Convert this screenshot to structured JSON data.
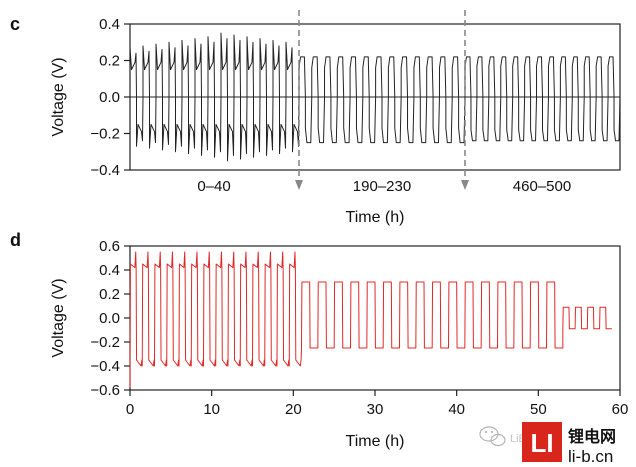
{
  "chart_data": [
    {
      "panel": "c",
      "type": "line",
      "ylabel": "Voltage (V)",
      "xlabel": "Time (h)",
      "ylim": [
        -0.4,
        0.4
      ],
      "yticks": [
        "0.4",
        "0.2",
        "0.0",
        "-0.2",
        "-0.4"
      ],
      "segments": [
        "0–40",
        "190–230",
        "460–500"
      ],
      "color": "#222222",
      "series": [
        {
          "segment": "0–40",
          "cycles": 13,
          "upper_plateau": [
            0.15,
            0.27
          ],
          "lower_plateau": [
            -0.15,
            -0.3
          ],
          "peak_values": [
            0.27,
            0.28,
            0.29,
            0.3,
            0.31,
            0.32,
            0.33,
            0.35,
            0.34,
            0.33,
            0.32,
            0.31,
            0.3
          ]
        },
        {
          "segment": "190–230",
          "cycles": 13,
          "upper_plateau": [
            0.16,
            0.22
          ],
          "lower_plateau": [
            -0.17,
            -0.25
          ]
        },
        {
          "segment": "460–500",
          "cycles": 13,
          "upper_plateau": [
            0.17,
            0.22
          ],
          "lower_plateau": [
            -0.18,
            -0.24
          ]
        }
      ]
    },
    {
      "panel": "d",
      "type": "line",
      "ylabel": "Voltage (V)",
      "xlabel": "Time (h)",
      "xlim": [
        0,
        60
      ],
      "ylim": [
        -0.6,
        0.6
      ],
      "xticks": [
        "0",
        "10",
        "20",
        "30",
        "40",
        "50",
        "60"
      ],
      "yticks": [
        "0.6",
        "0.4",
        "0.2",
        "0.0",
        "-0.2",
        "-0.4",
        "-0.6"
      ],
      "color": "#e02828",
      "series": [
        {
          "name": "",
          "phases": [
            {
              "x_range": [
                0,
                21
              ],
              "period": 1.5,
              "upper": 0.5,
              "lower": -0.45
            },
            {
              "x_range": [
                21,
                53
              ],
              "period": 2.0,
              "upper": 0.3,
              "lower": -0.25
            },
            {
              "x_range": [
                53,
                60
              ],
              "period": 1.5,
              "upper": 0.09,
              "lower": -0.09
            }
          ]
        }
      ]
    }
  ],
  "watermark": {
    "logo_text": "LI",
    "brand_cn": "锂电网",
    "brand_url": "li-b.cn",
    "faint_text": "LiBattery"
  }
}
